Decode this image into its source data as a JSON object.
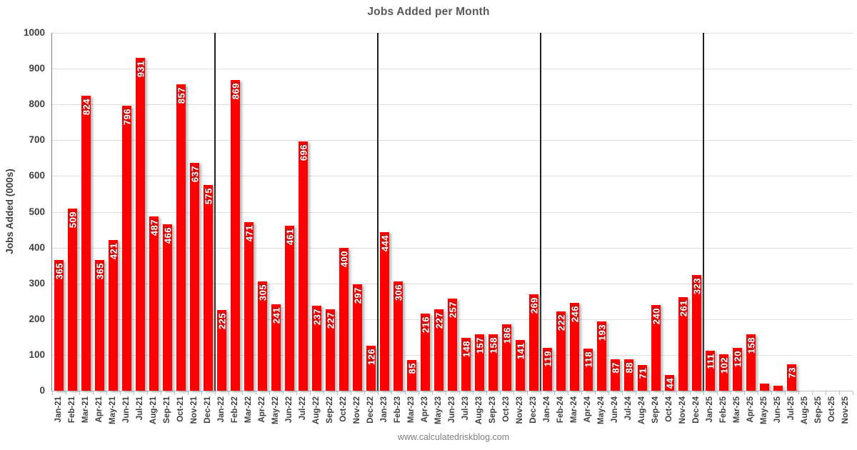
{
  "title": "Jobs Added per Month",
  "footer": "www.calculatedriskblog.com",
  "chart_data": {
    "type": "bar",
    "title": "Jobs Added per Month",
    "xlabel": "",
    "ylabel": "Jobs Added (000s)",
    "ylim": [
      0,
      1000
    ],
    "ytick_step": 100,
    "grid": "horizontal",
    "legend": "none",
    "bar_color": "#FF0000",
    "bar_label_color": "#FFFFFF",
    "year_separator_after": [
      "Dec-21",
      "Dec-22",
      "Dec-23",
      "Dec-24"
    ],
    "labels_hidden_for": [
      "May-25",
      "Jun-25"
    ],
    "categories": [
      "Jan-21",
      "Feb-21",
      "Mar-21",
      "Apr-21",
      "May-21",
      "Jun-21",
      "Jul-21",
      "Aug-21",
      "Sep-21",
      "Oct-21",
      "Nov-21",
      "Dec-21",
      "Jan-22",
      "Feb-22",
      "Mar-22",
      "Apr-22",
      "May-22",
      "Jun-22",
      "Jul-22",
      "Aug-22",
      "Sep-22",
      "Oct-22",
      "Nov-22",
      "Dec-22",
      "Jan-23",
      "Feb-23",
      "Mar-23",
      "Apr-23",
      "May-23",
      "Jun-23",
      "Jul-23",
      "Aug-23",
      "Sep-23",
      "Oct-23",
      "Nov-23",
      "Dec-23",
      "Jan-24",
      "Feb-24",
      "Mar-24",
      "Apr-24",
      "May-24",
      "Jun-24",
      "Jul-24",
      "Aug-24",
      "Sep-24",
      "Oct-24",
      "Nov-24",
      "Dec-24",
      "Jan-25",
      "Feb-25",
      "Mar-25",
      "Apr-25",
      "May-25",
      "Jun-25",
      "Jul-25",
      "Aug-25",
      "Sep-25",
      "Oct-25",
      "Nov-25"
    ],
    "values": [
      365,
      509,
      824,
      365,
      421,
      796,
      931,
      487,
      466,
      857,
      637,
      575,
      225,
      869,
      471,
      305,
      241,
      461,
      696,
      237,
      227,
      400,
      297,
      126,
      444,
      306,
      85,
      216,
      227,
      257,
      148,
      157,
      158,
      186,
      141,
      269,
      119,
      222,
      246,
      118,
      193,
      87,
      88,
      71,
      240,
      44,
      261,
      323,
      111,
      102,
      120,
      158,
      19,
      14,
      73,
      null,
      null,
      null,
      null
    ]
  }
}
